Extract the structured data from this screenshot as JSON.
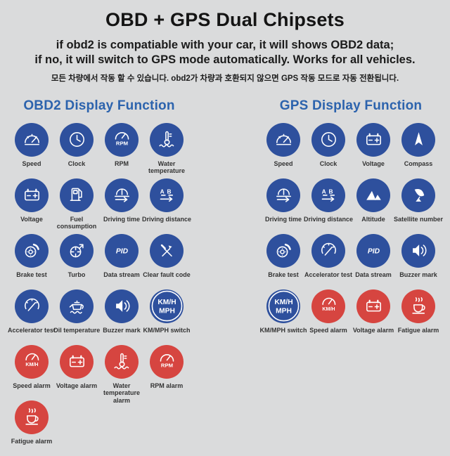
{
  "header": {
    "title": "OBD + GPS Dual Chipsets",
    "subtitle_line1": "if obd2 is compatiable with your car, it will shows OBD2 data;",
    "subtitle_line2": "if no, it will switch to GPS mode automatically. Works for all vehicles.",
    "subtitle_korean": "모든 차량에서 작동 할 수 있습니다. obd2가 차량과 호환되지 않으면 GPS 작동 모드로 자동 전환됩니다."
  },
  "colors": {
    "background": "#dadbdc",
    "icon_blue": "#2e509d",
    "icon_red": "#d64540",
    "heading_blue": "#2c63ad",
    "title_black": "#141414",
    "label_gray": "#333333"
  },
  "sections": [
    {
      "id": "obd2",
      "title": "OBD2 Display Function",
      "items": [
        {
          "label": "Speed",
          "icon": "speedometer-icon",
          "glyph": "gauge",
          "color": "blue"
        },
        {
          "label": "Clock",
          "icon": "clock-icon",
          "glyph": "clock",
          "color": "blue"
        },
        {
          "label": "RPM",
          "icon": "rpm-gauge-icon",
          "glyph": "rpm",
          "color": "blue"
        },
        {
          "label": "Water temperature",
          "icon": "water-temperature-icon",
          "glyph": "thermo",
          "color": "blue"
        },
        {
          "label": "Voltage",
          "icon": "battery-icon",
          "glyph": "battery",
          "color": "blue"
        },
        {
          "label": "Fuel consumption",
          "icon": "fuel-pump-icon",
          "glyph": "fuel",
          "color": "blue"
        },
        {
          "label": "Driving time",
          "icon": "driving-time-icon",
          "glyph": "gauge_arrow",
          "color": "blue"
        },
        {
          "label": "Driving distance",
          "icon": "driving-distance-icon",
          "glyph": "ab_arrow",
          "color": "blue"
        },
        {
          "label": "Brake test",
          "icon": "brake-disc-icon",
          "glyph": "brake",
          "color": "blue"
        },
        {
          "label": "Turbo",
          "icon": "turbocharger-icon",
          "glyph": "turbo",
          "color": "blue"
        },
        {
          "label": "Data stream",
          "icon": "pid-text-icon",
          "glyph": "pid",
          "color": "blue"
        },
        {
          "label": "Clear fault code",
          "icon": "crossed-tools-icon",
          "glyph": "tools",
          "color": "blue"
        },
        {
          "label": "Accelerator test",
          "icon": "accelerator-gauge-icon",
          "glyph": "gauge_needle",
          "color": "blue"
        },
        {
          "label": "Oil temperature",
          "icon": "oil-can-icon",
          "glyph": "oil",
          "color": "blue"
        },
        {
          "label": "Buzzer mark",
          "icon": "speaker-icon",
          "glyph": "speaker",
          "color": "blue"
        },
        {
          "label": "KM/MPH switch",
          "icon": "km-mph-text-icon",
          "glyph": "kmh_mph",
          "color": "blue"
        },
        {
          "label": "Speed alarm",
          "icon": "speed-alarm-gauge-icon",
          "glyph": "kmh_gauge",
          "color": "red"
        },
        {
          "label": "Voltage alarm",
          "icon": "battery-icon",
          "glyph": "battery",
          "color": "red"
        },
        {
          "label": "Water temperature alarm",
          "icon": "water-temperature-icon",
          "glyph": "thermo",
          "color": "red"
        },
        {
          "label": "RPM alarm",
          "icon": "rpm-gauge-icon",
          "glyph": "rpm",
          "color": "red"
        },
        {
          "label": "Fatigue alarm",
          "icon": "coffee-cup-icon",
          "glyph": "coffee",
          "color": "red"
        }
      ]
    },
    {
      "id": "gps",
      "title": "GPS Display Function",
      "items": [
        {
          "label": "Speed",
          "icon": "speedometer-icon",
          "glyph": "gauge",
          "color": "blue"
        },
        {
          "label": "Clock",
          "icon": "clock-icon",
          "glyph": "clock",
          "color": "blue"
        },
        {
          "label": "Voltage",
          "icon": "battery-icon",
          "glyph": "battery",
          "color": "blue"
        },
        {
          "label": "Compass",
          "icon": "compass-needle-icon",
          "glyph": "compass",
          "color": "blue"
        },
        {
          "label": "Driving time",
          "icon": "driving-time-icon",
          "glyph": "gauge_arrow",
          "color": "blue"
        },
        {
          "label": "Driving distance",
          "icon": "driving-distance-icon",
          "glyph": "ab_arrow",
          "color": "blue"
        },
        {
          "label": "Altitude",
          "icon": "mountains-icon",
          "glyph": "mountains",
          "color": "blue"
        },
        {
          "label": "Satellite number",
          "icon": "satellite-dish-icon",
          "glyph": "satellite",
          "color": "blue"
        },
        {
          "label": "Brake test",
          "icon": "brake-disc-icon",
          "glyph": "brake",
          "color": "blue"
        },
        {
          "label": "Accelerator test",
          "icon": "accelerator-gauge-icon",
          "glyph": "gauge_needle",
          "color": "blue"
        },
        {
          "label": "Data stream",
          "icon": "pid-text-icon",
          "glyph": "pid",
          "color": "blue"
        },
        {
          "label": "Buzzer mark",
          "icon": "speaker-icon",
          "glyph": "speaker",
          "color": "blue"
        },
        {
          "label": "KM/MPH switch",
          "icon": "km-mph-text-icon",
          "glyph": "kmh_mph",
          "color": "blue"
        },
        {
          "label": "Speed alarm",
          "icon": "speed-alarm-gauge-icon",
          "glyph": "kmh_gauge",
          "color": "red"
        },
        {
          "label": "Voltage alarm",
          "icon": "battery-icon",
          "glyph": "battery",
          "color": "red"
        },
        {
          "label": "Fatigue alarm",
          "icon": "coffee-cup-icon",
          "glyph": "coffee",
          "color": "red"
        }
      ]
    }
  ]
}
